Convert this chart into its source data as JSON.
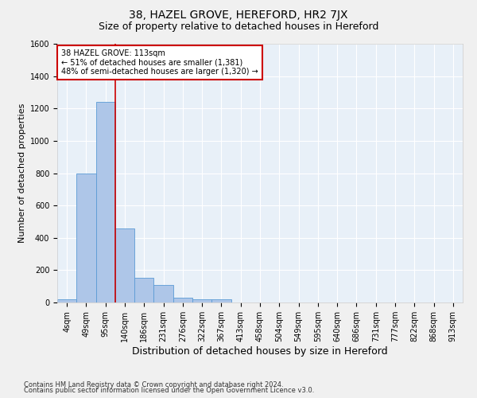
{
  "title": "38, HAZEL GROVE, HEREFORD, HR2 7JX",
  "subtitle": "Size of property relative to detached houses in Hereford",
  "xlabel": "Distribution of detached houses by size in Hereford",
  "ylabel": "Number of detached properties",
  "categories": [
    "4sqm",
    "49sqm",
    "95sqm",
    "140sqm",
    "186sqm",
    "231sqm",
    "276sqm",
    "322sqm",
    "367sqm",
    "413sqm",
    "458sqm",
    "504sqm",
    "549sqm",
    "595sqm",
    "640sqm",
    "686sqm",
    "731sqm",
    "777sqm",
    "822sqm",
    "868sqm",
    "913sqm"
  ],
  "values": [
    20,
    800,
    1240,
    460,
    155,
    110,
    30,
    20,
    20,
    0,
    0,
    0,
    0,
    0,
    0,
    0,
    0,
    0,
    0,
    0,
    0
  ],
  "bar_color": "#aec6e8",
  "bar_edge_color": "#5b9bd5",
  "vline_x": 2.5,
  "vline_color": "#cc0000",
  "ylim": [
    0,
    1600
  ],
  "yticks": [
    0,
    200,
    400,
    600,
    800,
    1000,
    1200,
    1400,
    1600
  ],
  "annotation_text": "38 HAZEL GROVE: 113sqm\n← 51% of detached houses are smaller (1,381)\n48% of semi-detached houses are larger (1,320) →",
  "annotation_box_color": "#ffffff",
  "annotation_box_edgecolor": "#cc0000",
  "footer_line1": "Contains HM Land Registry data © Crown copyright and database right 2024.",
  "footer_line2": "Contains public sector information licensed under the Open Government Licence v3.0.",
  "background_color": "#e8f0f8",
  "grid_color": "#ffffff",
  "title_fontsize": 10,
  "subtitle_fontsize": 9,
  "xlabel_fontsize": 9,
  "ylabel_fontsize": 8,
  "tick_fontsize": 7,
  "annotation_fontsize": 7,
  "footer_fontsize": 6
}
